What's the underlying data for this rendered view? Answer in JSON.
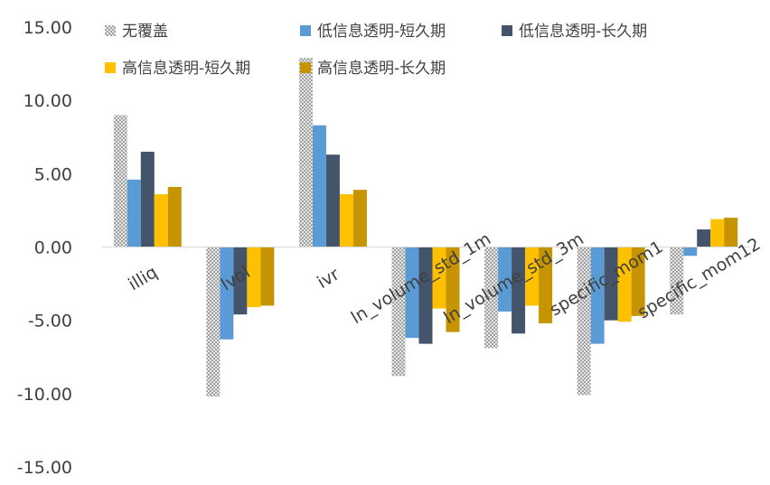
{
  "chart_data": {
    "type": "bar",
    "title": "",
    "xlabel": "",
    "ylabel": "",
    "ylim": [
      -15,
      15
    ],
    "y_ticks": [
      "15.00",
      "10.00",
      "5.00",
      "0.00",
      "-5.00",
      "-10.00",
      "-15.00"
    ],
    "legend_position": "top",
    "grid": false,
    "categories": [
      "illiq",
      "lvol",
      "ivr",
      "ln_volume_std_1m",
      "ln_volume_std_3m",
      "specific_mom1",
      "specific_mom12"
    ],
    "series": [
      {
        "name": "无覆盖",
        "color": "#bfbfbf",
        "pattern": "checker",
        "values": [
          9.0,
          -10.2,
          12.9,
          -8.8,
          -6.9,
          -10.1,
          -4.6
        ]
      },
      {
        "name": "低信息透明-短久期",
        "color": "#5b9bd5",
        "values": [
          4.6,
          -6.3,
          8.3,
          -6.2,
          -4.4,
          -6.6,
          -0.6
        ]
      },
      {
        "name": "低信息透明-长久期",
        "color": "#44546a",
        "values": [
          6.5,
          -4.6,
          6.3,
          -6.6,
          -5.9,
          -5.0,
          1.2
        ]
      },
      {
        "name": "高信息透明-短久期",
        "color": "#ffc000",
        "values": [
          3.6,
          -4.1,
          3.6,
          -4.2,
          -4.0,
          -5.1,
          1.9
        ]
      },
      {
        "name": "高信息透明-长久期",
        "color": "#c59400",
        "values": [
          4.1,
          -4.0,
          3.9,
          -5.8,
          -5.2,
          -4.7,
          2.0
        ]
      }
    ]
  }
}
